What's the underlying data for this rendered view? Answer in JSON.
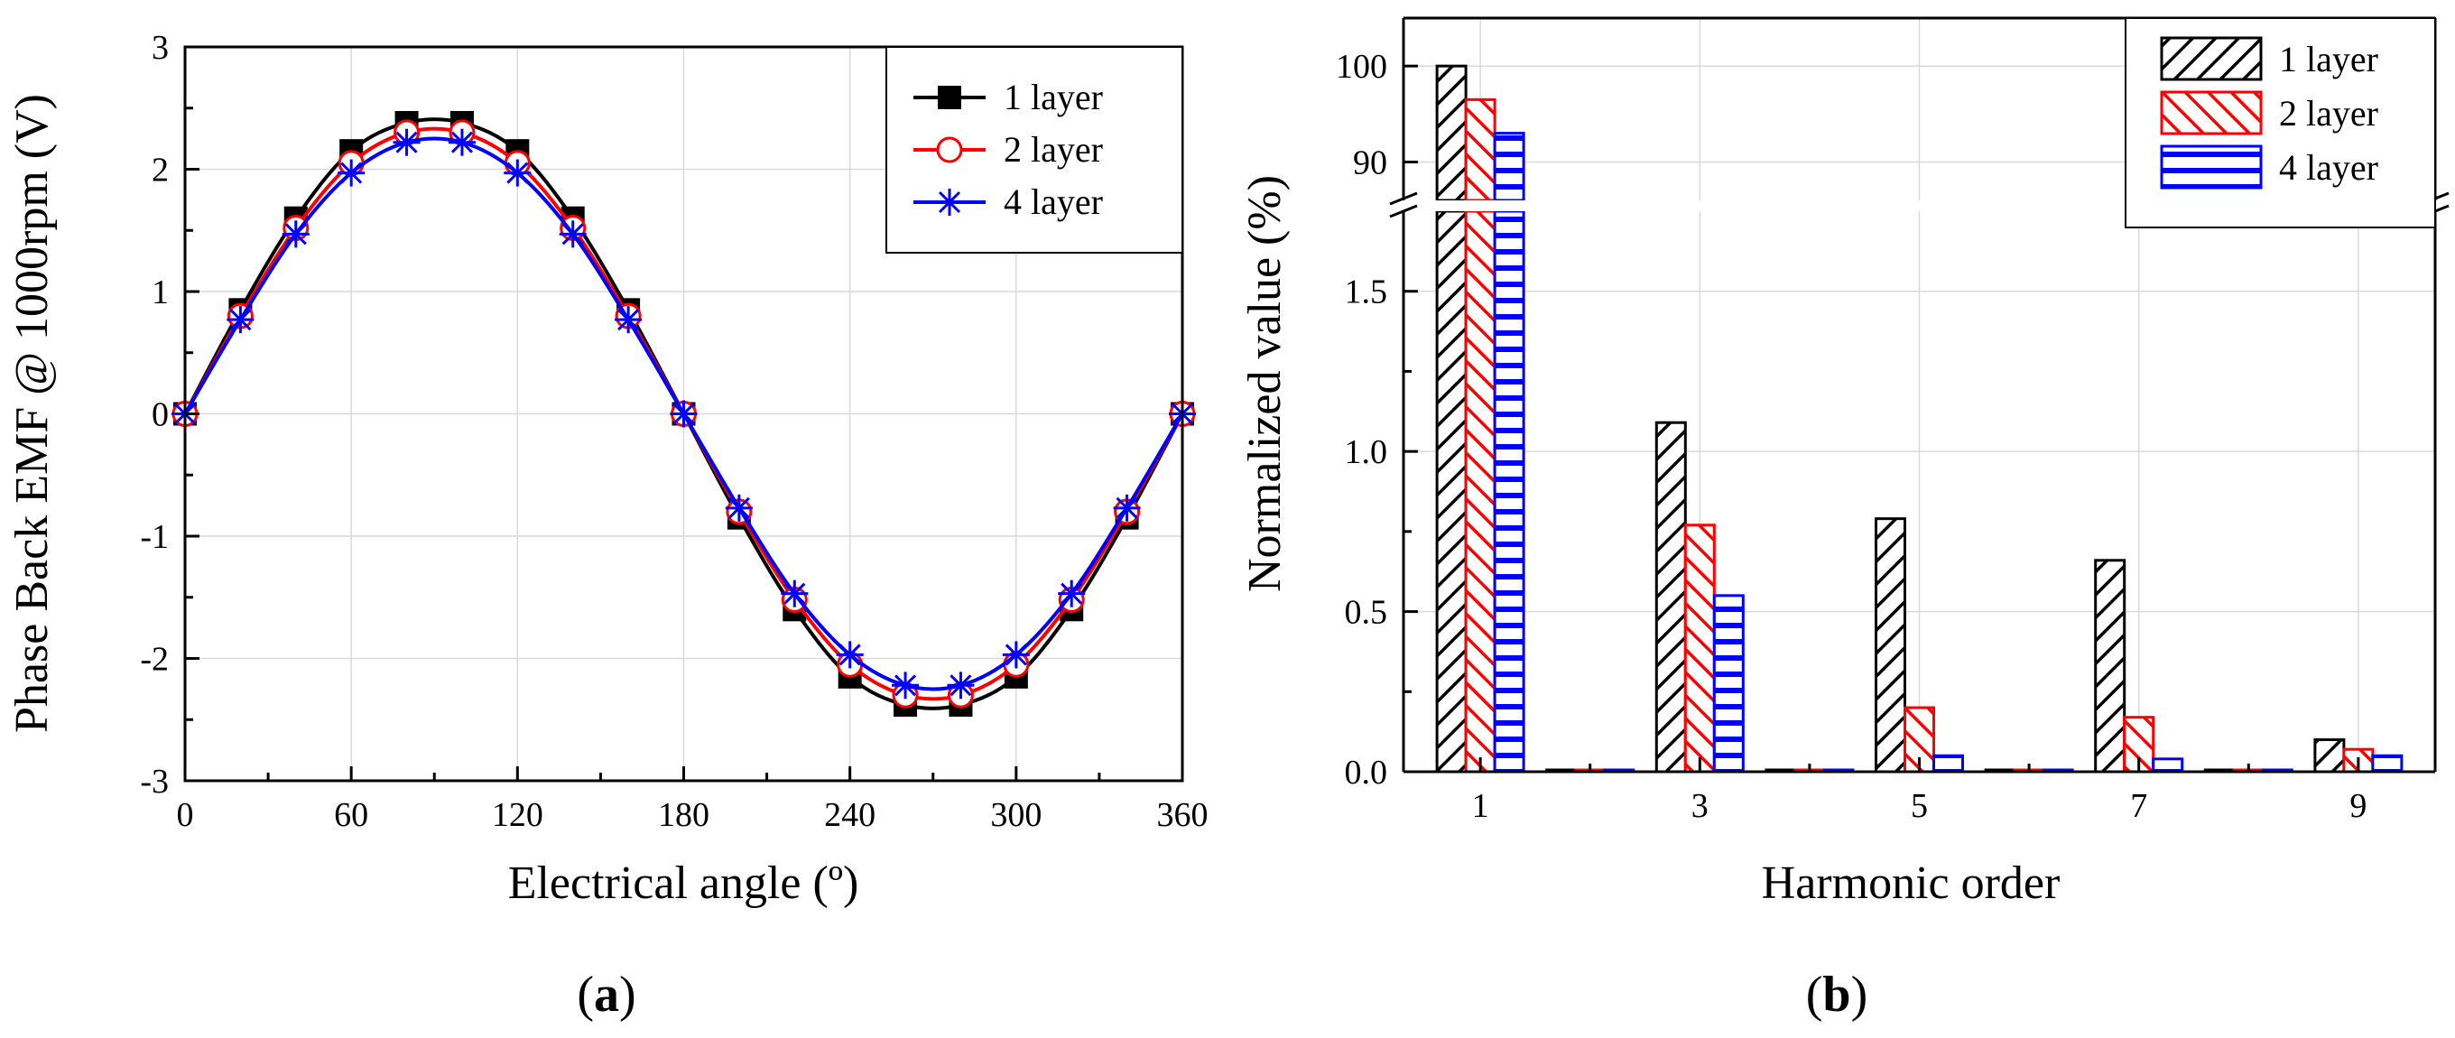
{
  "chart_data": [
    {
      "id": "a",
      "type": "line",
      "caption": "(a)",
      "caption_letter": "a",
      "xlabel": "Electrical angle (º)",
      "ylabel": "Phase Back EMF @ 1000rpm (V)",
      "xlim": [
        0,
        360
      ],
      "ylim": [
        -3,
        3
      ],
      "xticks": [
        0,
        60,
        120,
        180,
        240,
        300,
        360
      ],
      "yticks": [
        -3,
        -2,
        -1,
        0,
        1,
        2,
        3
      ],
      "grid": true,
      "legend_position": "top-right",
      "x": [
        0,
        20,
        40,
        60,
        80,
        100,
        120,
        140,
        160,
        180,
        200,
        220,
        240,
        260,
        280,
        300,
        320,
        340,
        360
      ],
      "series": [
        {
          "name": "1 layer",
          "color": "#000000",
          "marker": "square",
          "values": [
            0,
            0.85,
            1.6,
            2.15,
            2.38,
            2.38,
            2.15,
            1.6,
            0.85,
            0,
            -0.85,
            -1.6,
            -2.15,
            -2.38,
            -2.38,
            -2.15,
            -1.6,
            -0.85,
            0
          ]
        },
        {
          "name": "2 layer",
          "color": "#ff0000",
          "marker": "circle",
          "values": [
            0,
            0.8,
            1.52,
            2.05,
            2.3,
            2.3,
            2.05,
            1.52,
            0.8,
            0,
            -0.8,
            -1.52,
            -2.05,
            -2.3,
            -2.3,
            -2.05,
            -1.52,
            -0.8,
            0
          ]
        },
        {
          "name": "4 layer",
          "color": "#0000ff",
          "marker": "asterisk",
          "values": [
            0,
            0.77,
            1.47,
            1.97,
            2.22,
            2.22,
            1.97,
            1.47,
            0.77,
            0,
            -0.77,
            -1.47,
            -1.97,
            -2.22,
            -2.22,
            -1.97,
            -1.47,
            -0.77,
            0
          ]
        }
      ]
    },
    {
      "id": "b",
      "type": "bar",
      "caption": "(b)",
      "caption_letter": "b",
      "xlabel": "Harmonic order",
      "ylabel": "Normalized value (%)",
      "categories": [
        1,
        2,
        3,
        4,
        5,
        6,
        7,
        8,
        9
      ],
      "xtick_labels": [
        "1",
        "3",
        "5",
        "7",
        "9"
      ],
      "xtick_positions": [
        1,
        3,
        5,
        7,
        9
      ],
      "ylim_upper": [
        86,
        105
      ],
      "ylim_lower": [
        0,
        1.75
      ],
      "yticks_upper": [
        90,
        100
      ],
      "yticks_lower": [
        0.0,
        0.5,
        1.0,
        1.5
      ],
      "ytick_labels_upper": [
        "90",
        "100"
      ],
      "ytick_labels_lower": [
        "0.0",
        "0.5",
        "1.0",
        "1.5"
      ],
      "axis_break": true,
      "grid": true,
      "legend_position": "top-right",
      "series": [
        {
          "name": "1 layer",
          "color": "#000000",
          "hatch": "diagonal-forward",
          "values": [
            100,
            0,
            1.09,
            0,
            0.79,
            0,
            0.66,
            0,
            0.1
          ]
        },
        {
          "name": "2 layer",
          "color": "#ff0000",
          "hatch": "diagonal-back",
          "values": [
            96.5,
            0,
            0.77,
            0,
            0.2,
            0,
            0.17,
            0,
            0.07
          ]
        },
        {
          "name": "4 layer",
          "color": "#0000ff",
          "hatch": "horizontal",
          "values": [
            93,
            0,
            0.55,
            0,
            0.05,
            0,
            0.04,
            0,
            0.05
          ]
        }
      ]
    }
  ]
}
